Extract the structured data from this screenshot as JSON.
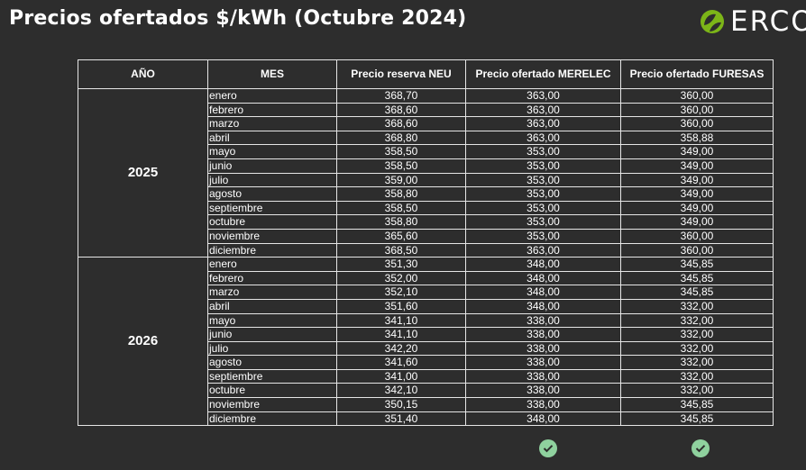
{
  "title": "Precios ofertados $/kWh (Octubre 2024)",
  "logo": {
    "text": "ERCO",
    "icon": "green-leaf-circle-icon"
  },
  "colors": {
    "background": "#2d2d2d",
    "border": "#e6e6e6",
    "check": "#8fd19e",
    "logo_green": "#7cb518"
  },
  "table": {
    "headers": [
      "AÑO",
      "MES",
      "Precio reserva NEU",
      "Precio ofertado MERELEC",
      "Precio ofertado FURESAS"
    ],
    "groups": [
      {
        "year": "2025",
        "rows": [
          {
            "month": "enero",
            "neu": "368,70",
            "merelec": "363,00",
            "furesas": "360,00"
          },
          {
            "month": "febrero",
            "neu": "368,60",
            "merelec": "363,00",
            "furesas": "360,00"
          },
          {
            "month": "marzo",
            "neu": "368,60",
            "merelec": "363,00",
            "furesas": "360,00"
          },
          {
            "month": "abril",
            "neu": "368,80",
            "merelec": "363,00",
            "furesas": "358,88"
          },
          {
            "month": "mayo",
            "neu": "358,50",
            "merelec": "353,00",
            "furesas": "349,00"
          },
          {
            "month": "junio",
            "neu": "358,50",
            "merelec": "353,00",
            "furesas": "349,00"
          },
          {
            "month": "julio",
            "neu": "359,00",
            "merelec": "353,00",
            "furesas": "349,00"
          },
          {
            "month": "agosto",
            "neu": "358,80",
            "merelec": "353,00",
            "furesas": "349,00"
          },
          {
            "month": "septiembre",
            "neu": "358,50",
            "merelec": "353,00",
            "furesas": "349,00"
          },
          {
            "month": "octubre",
            "neu": "358,80",
            "merelec": "353,00",
            "furesas": "349,00"
          },
          {
            "month": "noviembre",
            "neu": "365,60",
            "merelec": "353,00",
            "furesas": "360,00"
          },
          {
            "month": "diciembre",
            "neu": "368,50",
            "merelec": "363,00",
            "furesas": "360,00"
          }
        ]
      },
      {
        "year": "2026",
        "rows": [
          {
            "month": "enero",
            "neu": "351,30",
            "merelec": "348,00",
            "furesas": "345,85"
          },
          {
            "month": "febrero",
            "neu": "352,00",
            "merelec": "348,00",
            "furesas": "345,85"
          },
          {
            "month": "marzo",
            "neu": "352,10",
            "merelec": "348,00",
            "furesas": "345,85"
          },
          {
            "month": "abril",
            "neu": "351,60",
            "merelec": "348,00",
            "furesas": "332,00"
          },
          {
            "month": "mayo",
            "neu": "341,10",
            "merelec": "338,00",
            "furesas": "332,00"
          },
          {
            "month": "junio",
            "neu": "341,10",
            "merelec": "338,00",
            "furesas": "332,00"
          },
          {
            "month": "julio",
            "neu": "342,20",
            "merelec": "338,00",
            "furesas": "332,00"
          },
          {
            "month": "agosto",
            "neu": "341,60",
            "merelec": "338,00",
            "furesas": "332,00"
          },
          {
            "month": "septiembre",
            "neu": "341,00",
            "merelec": "338,00",
            "furesas": "332,00"
          },
          {
            "month": "octubre",
            "neu": "342,10",
            "merelec": "338,00",
            "furesas": "332,00"
          },
          {
            "month": "noviembre",
            "neu": "350,15",
            "merelec": "338,00",
            "furesas": "345,85"
          },
          {
            "month": "diciembre",
            "neu": "351,40",
            "merelec": "348,00",
            "furesas": "345,85"
          }
        ]
      }
    ]
  },
  "checkmarks": [
    {
      "column": "Precio ofertado MERELEC",
      "icon": "check-circle-icon"
    },
    {
      "column": "Precio ofertado FURESAS",
      "icon": "check-circle-icon"
    }
  ]
}
